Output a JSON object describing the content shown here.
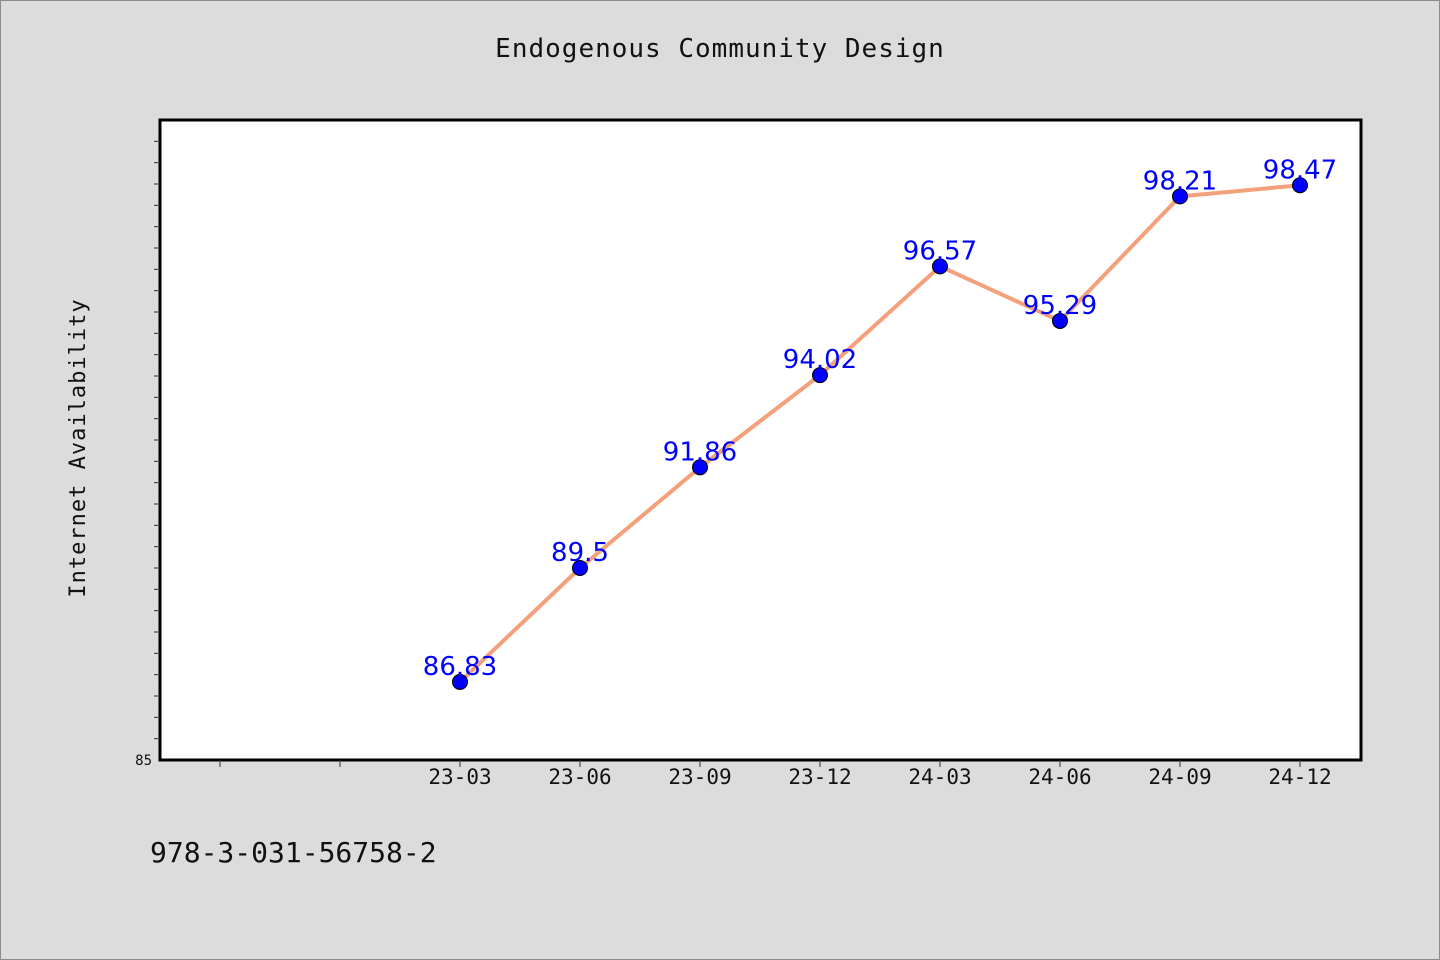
{
  "footer": {
    "isbn": "978-3-031-56758-2"
  },
  "colors": {
    "background": "#dcdcdc",
    "plot_background": "#ffffff",
    "line": "#f4a07a",
    "marker": "#0000ff",
    "data_label": "#0000ff"
  },
  "chart_data": {
    "type": "line",
    "title": "Endogenous Community Design",
    "xlabel": "",
    "ylabel": "Internet Availability",
    "categories": [
      "23-03",
      "23-06",
      "23-09",
      "23-12",
      "24-03",
      "24-06",
      "24-09",
      "24-12"
    ],
    "series": [
      {
        "values": [
          86.83,
          89.5,
          91.86,
          94.02,
          96.57,
          95.29,
          98.21,
          98.47
        ]
      }
    ],
    "ylim": [
      85,
      100
    ],
    "y_tick_labels": [
      "85"
    ],
    "grid": false,
    "legend": "none",
    "data_labels": true
  }
}
